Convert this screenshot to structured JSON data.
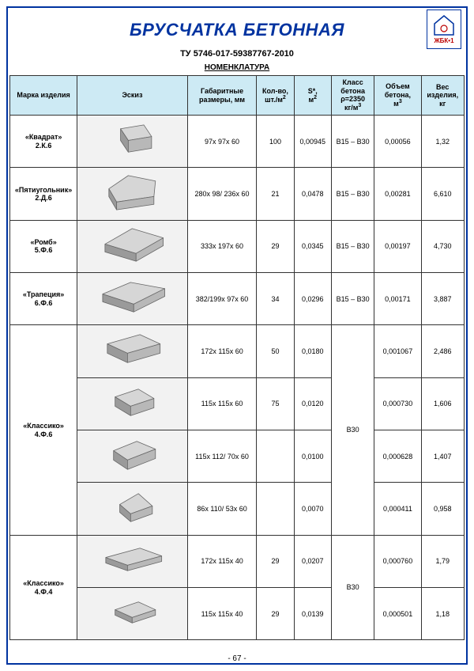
{
  "title": "БРУСЧАТКА БЕТОННАЯ",
  "subtitle": "ТУ 5746-017-59387767-2010",
  "section_label": "НОМЕНКЛАТУРА",
  "logo_text": "ЖБК•1",
  "page_number": "- 67 -",
  "header_bg": "#cdeaf4",
  "border_color": "#0033a0",
  "columns": [
    "Марка изделия",
    "Эскиз",
    "Габаритные размеры, мм",
    "Кол-во, шт./м²",
    "S*, м²",
    "Класс бетона ρ=2350 кг/м³",
    "Объем бетона, м³",
    "Вес изделия, кг"
  ],
  "groups": [
    {
      "marka": "«Квадрат» 2.К.6",
      "rows": [
        {
          "sketch": "square",
          "gab": "97х 97х 60",
          "kol": "100",
          "s": "0,00945",
          "klass": "В15 – В30",
          "vol": "0,00056",
          "ves": "1,32"
        }
      ]
    },
    {
      "marka": "«Пятиугольник» 2.Д.6",
      "rows": [
        {
          "sketch": "pentagon",
          "gab": "280х 98/ 236х 60",
          "kol": "21",
          "s": "0,0478",
          "klass": "В15 – В30",
          "vol": "0,00281",
          "ves": "6,610"
        }
      ]
    },
    {
      "marka": "«Ромб» 5.Ф.6",
      "rows": [
        {
          "sketch": "rhomb",
          "gab": "333х 197х 60",
          "kol": "29",
          "s": "0,0345",
          "klass": "В15 – В30",
          "vol": "0,00197",
          "ves": "4,730"
        }
      ]
    },
    {
      "marka": "«Трапеция» 6.Ф.6",
      "rows": [
        {
          "sketch": "trapez",
          "gab": "382/199х 97х 60",
          "kol": "34",
          "s": "0,0296",
          "klass": "В15 – В30",
          "vol": "0,00171",
          "ves": "3,887"
        }
      ]
    },
    {
      "marka": "«Классико» 4.Ф.6",
      "klass_group": "В30",
      "rows": [
        {
          "sketch": "rect-lg",
          "gab": "172х 115х 60",
          "kol": "50",
          "s": "0,0180",
          "vol": "0,001067",
          "ves": "2,486"
        },
        {
          "sketch": "rect-sq",
          "gab": "115х 115х 60",
          "kol": "75",
          "s": "0,0120",
          "vol": "0,000730",
          "ves": "1,606"
        },
        {
          "sketch": "rect-trap",
          "gab": "115х 112/ 70х 60",
          "kol": "",
          "s": "0,0100",
          "vol": "0,000628",
          "ves": "1,407"
        },
        {
          "sketch": "rect-tri",
          "gab": "86х 110/ 53х 60",
          "kol": "",
          "s": "0,0070",
          "vol": "0,000411",
          "ves": "0,958"
        }
      ]
    },
    {
      "marka": "«Классико» 4.Ф.4",
      "klass_group": "В30",
      "rows": [
        {
          "sketch": "thin-lg",
          "gab": "172х 115х 40",
          "kol": "29",
          "s": "0,0207",
          "vol": "0,000760",
          "ves": "1,79"
        },
        {
          "sketch": "thin-sq",
          "gab": "115х 115х 40",
          "kol": "29",
          "s": "0,0139",
          "vol": "0,000501",
          "ves": "1,18"
        }
      ]
    }
  ],
  "sketch_fill": "#b8b8b8",
  "sketch_top": "#d6d6d6",
  "sketch_side": "#9a9a9a",
  "sketch_stroke": "#666"
}
